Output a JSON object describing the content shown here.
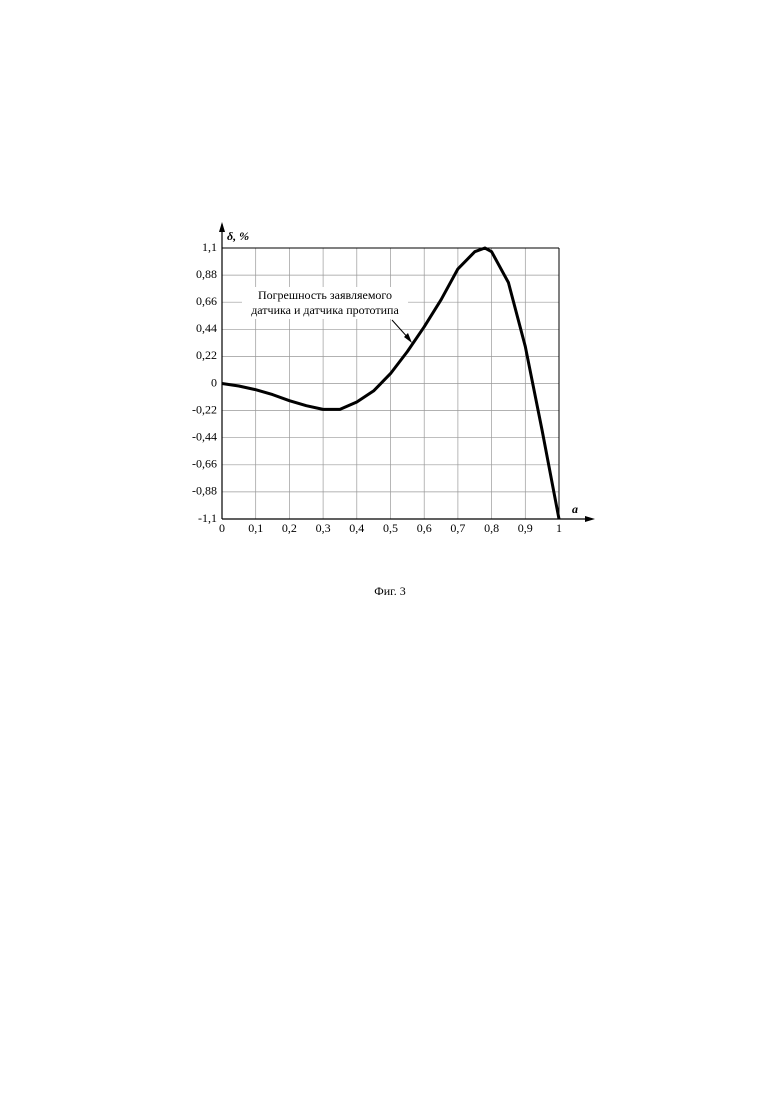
{
  "chart_data": {
    "type": "line",
    "y_label": "δ, %",
    "x_label": "a",
    "annotation": [
      "Погрешность заявляемого",
      "датчика и датчика прототипа"
    ],
    "caption": "Фиг. 3",
    "x": [
      0,
      0.05,
      0.1,
      0.15,
      0.2,
      0.25,
      0.3,
      0.35,
      0.4,
      0.45,
      0.5,
      0.55,
      0.6,
      0.65,
      0.7,
      0.75,
      0.78,
      0.8,
      0.85,
      0.9,
      0.95,
      1.0
    ],
    "values": [
      0,
      -0.02,
      -0.05,
      -0.09,
      -0.14,
      -0.18,
      -0.21,
      -0.21,
      -0.15,
      -0.06,
      0.08,
      0.26,
      0.46,
      0.68,
      0.93,
      1.07,
      1.1,
      1.07,
      0.82,
      0.3,
      -0.38,
      -1.1
    ],
    "color": "#000000",
    "xlim": [
      0,
      1
    ],
    "ylim": [
      -1.1,
      1.1
    ],
    "xticks": [
      0,
      {
        "value": 0.1,
        "label": "0,1"
      },
      {
        "value": 0.2,
        "label": "0,2"
      },
      {
        "value": 0.3,
        "label": "0,3"
      },
      {
        "value": 0.4,
        "label": "0,4"
      },
      {
        "value": 0.5,
        "label": "0,5"
      },
      {
        "value": 0.6,
        "label": "0,6"
      },
      {
        "value": 0.7,
        "label": "0,7"
      },
      {
        "value": 0.8,
        "label": "0,8"
      },
      {
        "value": 0.9,
        "label": "0,9"
      },
      1
    ],
    "yticks": [
      {
        "value": 1.1,
        "label": "1,1"
      },
      {
        "value": 0.88,
        "label": "0,88"
      },
      {
        "value": 0.66,
        "label": "0,66"
      },
      {
        "value": 0.44,
        "label": "0,44"
      },
      {
        "value": 0.22,
        "label": "0,22"
      },
      0,
      {
        "value": -0.22,
        "label": "-0,22"
      },
      {
        "value": -0.44,
        "label": "-0,44"
      },
      {
        "value": -0.66,
        "label": "-0,66"
      },
      {
        "value": -0.88,
        "label": "-0,88"
      },
      {
        "value": -1.1,
        "label": "-1,1"
      }
    ],
    "grid": true
  }
}
